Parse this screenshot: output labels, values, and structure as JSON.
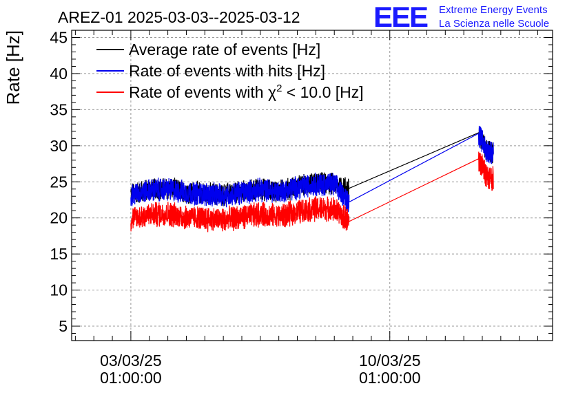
{
  "chart_data": {
    "type": "line",
    "title": "AREZ-01 2025-03-03--2025-03-12",
    "ylabel": "Rate [Hz]",
    "xlabel": "",
    "ylim": [
      3,
      46
    ],
    "y_ticks": [
      5,
      10,
      15,
      20,
      25,
      30,
      35,
      40,
      45
    ],
    "x_ticks": [
      {
        "label_line1": "03/03/25",
        "label_line2": "01:00:00",
        "days": 0
      },
      {
        "label_line1": "10/03/25",
        "label_line2": "01:00:00",
        "days": 7
      }
    ],
    "grid": true,
    "legend_position": "top-left",
    "logo": {
      "letters": "EEE",
      "line1": "Extreme Energy Events",
      "line2": "La Scienza nelle Scuole",
      "color": "#1a1aff"
    },
    "series": [
      {
        "name": "Average rate of events [Hz]",
        "color": "#000000",
        "x": [
          0.0,
          0.5,
          1.0,
          1.5,
          2.0,
          2.5,
          3.0,
          3.5,
          4.0,
          4.5,
          5.0,
          5.5,
          5.9,
          9.4,
          9.6,
          9.8
        ],
        "y": [
          23.3,
          23.9,
          24.1,
          23.6,
          23.4,
          23.2,
          23.6,
          24.0,
          23.7,
          24.3,
          24.8,
          24.7,
          24.1,
          31.8,
          29.5,
          29.0
        ],
        "band": 1.4
      },
      {
        "name": "Rate of events with hits [Hz]",
        "color": "#0000ee",
        "x": [
          0.0,
          0.5,
          1.0,
          1.5,
          2.0,
          2.5,
          3.0,
          3.5,
          4.0,
          4.5,
          5.0,
          5.5,
          5.9,
          9.4,
          9.6,
          9.8
        ],
        "y": [
          23.2,
          23.8,
          24.0,
          23.5,
          23.3,
          23.1,
          23.5,
          23.9,
          23.6,
          24.2,
          24.7,
          24.6,
          22.2,
          31.7,
          29.4,
          29.0
        ],
        "band": 1.5
      },
      {
        "name": "Rate of events with χ² < 10.0 [Hz]",
        "legend_text": "Rate of events with χ",
        "legend_sup": "2",
        "legend_tail": " < 10.0 [Hz]",
        "color": "#ff0000",
        "x": [
          0.0,
          0.5,
          1.0,
          1.5,
          2.0,
          2.5,
          3.0,
          3.5,
          4.0,
          4.5,
          5.0,
          5.5,
          5.9,
          9.4,
          9.6,
          9.8
        ],
        "y": [
          19.9,
          20.4,
          20.6,
          20.1,
          19.9,
          19.7,
          20.1,
          20.5,
          20.2,
          20.8,
          21.3,
          21.2,
          19.5,
          28.2,
          26.0,
          25.4
        ],
        "band": 1.6
      }
    ]
  }
}
